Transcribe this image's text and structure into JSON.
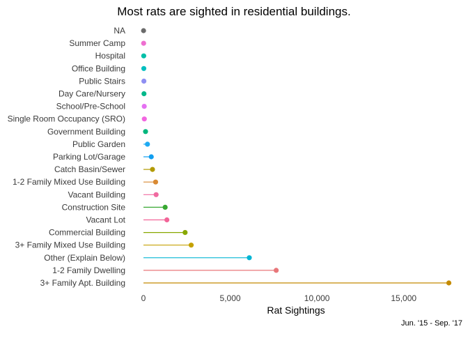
{
  "chart_data": {
    "type": "lollipop",
    "title": "Most rats are sighted in residential buildings.",
    "xlabel": "Rat Sightings",
    "ylabel": "",
    "caption": "Jun. '15 - Sep. '17",
    "xlim": [
      -600,
      17700
    ],
    "xticks": [
      0,
      5000,
      10000,
      15000
    ],
    "xtick_labels": [
      "0",
      "5,000",
      "10,000",
      "15,000"
    ],
    "grid": false,
    "legend": "none",
    "categories": [
      "NA",
      "Summer Camp",
      "Hospital",
      "Office Building",
      "Public Stairs",
      "Day Care/Nursery",
      "School/Pre-School",
      "Single Room Occupancy (SRO)",
      "Government Building",
      "Public Garden",
      "Parking Lot/Garage",
      "Catch Basin/Sewer",
      "1-2 Family Mixed Use Building",
      "Vacant Building",
      "Construction Site",
      "Vacant Lot",
      "Commercial Building",
      "3+ Family Mixed Use Building",
      "Other (Explain Below)",
      "1-2 Family Dwelling",
      "3+ Family Apt. Building"
    ],
    "values": [
      5,
      10,
      15,
      20,
      25,
      30,
      45,
      50,
      120,
      230,
      450,
      520,
      700,
      730,
      1250,
      1350,
      2400,
      2750,
      6100,
      7650,
      17600
    ],
    "colors": [
      "#6b6b6b",
      "#ee6fd0",
      "#00bfa8",
      "#00bfc0",
      "#8f8ff2",
      "#00b88a",
      "#e571f2",
      "#f266e0",
      "#00b67d",
      "#1eaaf2",
      "#109ef0",
      "#b29a00",
      "#d98a33",
      "#f06aa0",
      "#38a832",
      "#f26598",
      "#88a800",
      "#c4a100",
      "#00b5d4",
      "#e8777a",
      "#c48a00"
    ]
  }
}
